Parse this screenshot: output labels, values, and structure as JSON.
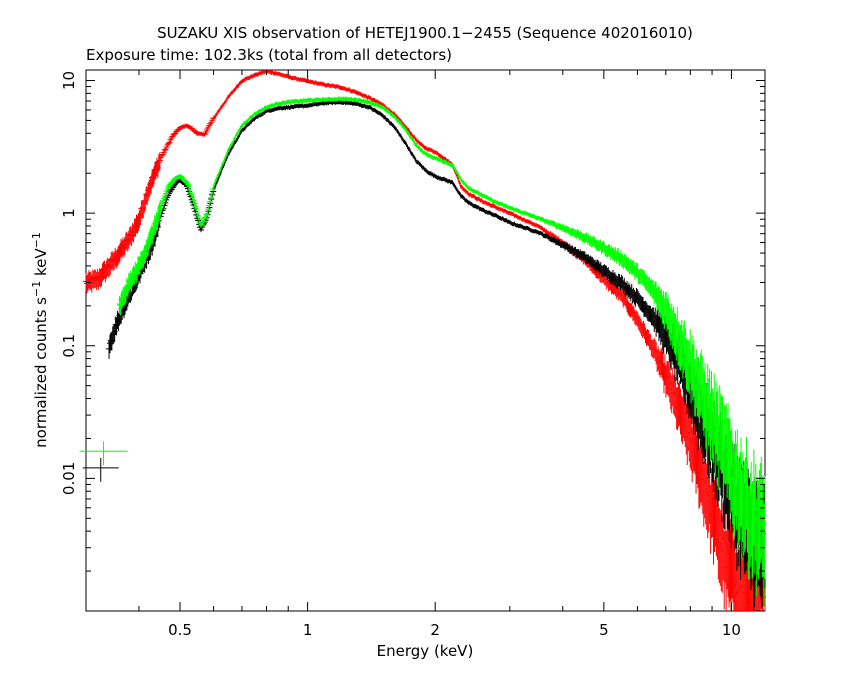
{
  "chart_data": {
    "type": "scatter",
    "title": "SUZAKU XIS observation of HETEJ1900.1−2455 (Sequence 402016010)",
    "subtitle": "Exposure time: 102.3ks (total from all detectors)",
    "xlabel": "Energy (keV)",
    "ylabel_parts": {
      "pre": "normalized counts s",
      "sup1": "−1",
      "mid": " keV",
      "sup2": "−1"
    },
    "x_scale": "log",
    "y_scale": "log",
    "xlim": [
      0.3,
      12
    ],
    "ylim": [
      0.001,
      12
    ],
    "x_ticks": [
      {
        "value": 0.5,
        "label": "0.5"
      },
      {
        "value": 1,
        "label": "1"
      },
      {
        "value": 2,
        "label": "2"
      },
      {
        "value": 5,
        "label": "5"
      },
      {
        "value": 10,
        "label": "10"
      }
    ],
    "y_ticks": [
      {
        "value": 0.01,
        "label": "0.01"
      },
      {
        "value": 0.1,
        "label": "0.1"
      },
      {
        "value": 1,
        "label": "1"
      },
      {
        "value": 10,
        "label": "10"
      }
    ],
    "grid": false,
    "legend": false,
    "series": [
      {
        "color": "#ff0000",
        "x": [
          0.3,
          0.32,
          0.35,
          0.38,
          0.4,
          0.42,
          0.45,
          0.48,
          0.5,
          0.52,
          0.55,
          0.57,
          0.6,
          0.65,
          0.7,
          0.75,
          0.8,
          0.85,
          0.9,
          1.0,
          1.1,
          1.2,
          1.3,
          1.4,
          1.5,
          1.6,
          1.7,
          1.8,
          1.85,
          1.9,
          2.0,
          2.1,
          2.2,
          2.3,
          2.4,
          2.6,
          2.8,
          3.0,
          3.5,
          4.0,
          4.5,
          5.0,
          5.5,
          6.0,
          6.5,
          7.0,
          7.5,
          8.0,
          8.5,
          9.0,
          9.5,
          10.0,
          11.0,
          12.0
        ],
        "y": [
          0.3,
          0.32,
          0.45,
          0.65,
          0.9,
          1.5,
          2.6,
          3.8,
          4.4,
          4.6,
          4.0,
          3.9,
          5.2,
          7.5,
          10.0,
          11.0,
          11.8,
          11.3,
          10.7,
          9.9,
          9.3,
          8.9,
          8.2,
          7.4,
          6.6,
          5.6,
          4.5,
          3.6,
          3.3,
          3.1,
          2.9,
          2.6,
          2.3,
          1.6,
          1.4,
          1.22,
          1.1,
          1.0,
          0.8,
          0.6,
          0.45,
          0.32,
          0.24,
          0.16,
          0.1,
          0.06,
          0.035,
          0.02,
          0.011,
          0.006,
          0.003,
          0.002,
          0.0015,
          0.002
        ]
      },
      {
        "color": "#000000",
        "x": [
          0.34,
          0.36,
          0.38,
          0.4,
          0.43,
          0.45,
          0.47,
          0.49,
          0.5,
          0.52,
          0.54,
          0.56,
          0.58,
          0.6,
          0.65,
          0.7,
          0.75,
          0.8,
          0.85,
          0.9,
          1.0,
          1.1,
          1.2,
          1.3,
          1.4,
          1.5,
          1.6,
          1.7,
          1.8,
          1.85,
          1.9,
          2.0,
          2.1,
          2.2,
          2.3,
          2.4,
          2.6,
          2.8,
          3.0,
          3.5,
          4.0,
          4.5,
          5.0,
          5.5,
          6.0,
          6.5,
          7.0,
          7.5,
          8.0,
          8.5,
          9.0,
          10.0,
          11.0,
          12.0
        ],
        "y": [
          0.1,
          0.17,
          0.25,
          0.35,
          0.6,
          0.95,
          1.4,
          1.7,
          1.8,
          1.6,
          1.1,
          0.75,
          0.95,
          1.5,
          2.8,
          4.2,
          5.2,
          5.9,
          6.2,
          6.3,
          6.5,
          6.8,
          6.9,
          6.7,
          6.3,
          5.5,
          4.5,
          3.4,
          2.5,
          2.3,
          2.1,
          1.9,
          1.8,
          1.7,
          1.35,
          1.2,
          1.05,
          0.95,
          0.85,
          0.72,
          0.58,
          0.47,
          0.37,
          0.3,
          0.23,
          0.17,
          0.12,
          0.08,
          0.05,
          0.03,
          0.02,
          0.008,
          0.004,
          0.003
        ]
      },
      {
        "color": "#00ff00",
        "x": [
          0.36,
          0.38,
          0.4,
          0.43,
          0.45,
          0.47,
          0.49,
          0.5,
          0.52,
          0.54,
          0.56,
          0.58,
          0.6,
          0.65,
          0.7,
          0.75,
          0.8,
          0.85,
          0.9,
          1.0,
          1.1,
          1.2,
          1.3,
          1.4,
          1.5,
          1.6,
          1.7,
          1.8,
          1.85,
          1.9,
          2.0,
          2.1,
          2.2,
          2.3,
          2.4,
          2.6,
          2.8,
          3.0,
          3.5,
          4.0,
          4.5,
          5.0,
          5.5,
          6.0,
          6.5,
          7.0,
          7.5,
          8.0,
          8.5,
          9.0,
          10.0,
          11.0,
          12.0
        ],
        "y": [
          0.2,
          0.3,
          0.4,
          0.7,
          1.1,
          1.6,
          1.85,
          1.9,
          1.7,
          1.2,
          0.8,
          1.0,
          1.6,
          3.0,
          4.6,
          5.6,
          6.3,
          6.7,
          6.9,
          7.1,
          7.2,
          7.3,
          7.2,
          6.9,
          6.3,
          5.4,
          4.3,
          3.3,
          3.0,
          2.8,
          2.6,
          2.45,
          2.3,
          1.8,
          1.55,
          1.35,
          1.2,
          1.1,
          0.92,
          0.78,
          0.66,
          0.55,
          0.46,
          0.36,
          0.27,
          0.19,
          0.12,
          0.075,
          0.045,
          0.03,
          0.012,
          0.006,
          0.004
        ]
      }
    ],
    "annotations": [
      {
        "type": "crosshair",
        "color": "#00ff00",
        "x": 0.33,
        "y": 0.016
      },
      {
        "type": "crosshair",
        "color": "#000000",
        "x": 0.325,
        "y": 0.012
      }
    ]
  }
}
